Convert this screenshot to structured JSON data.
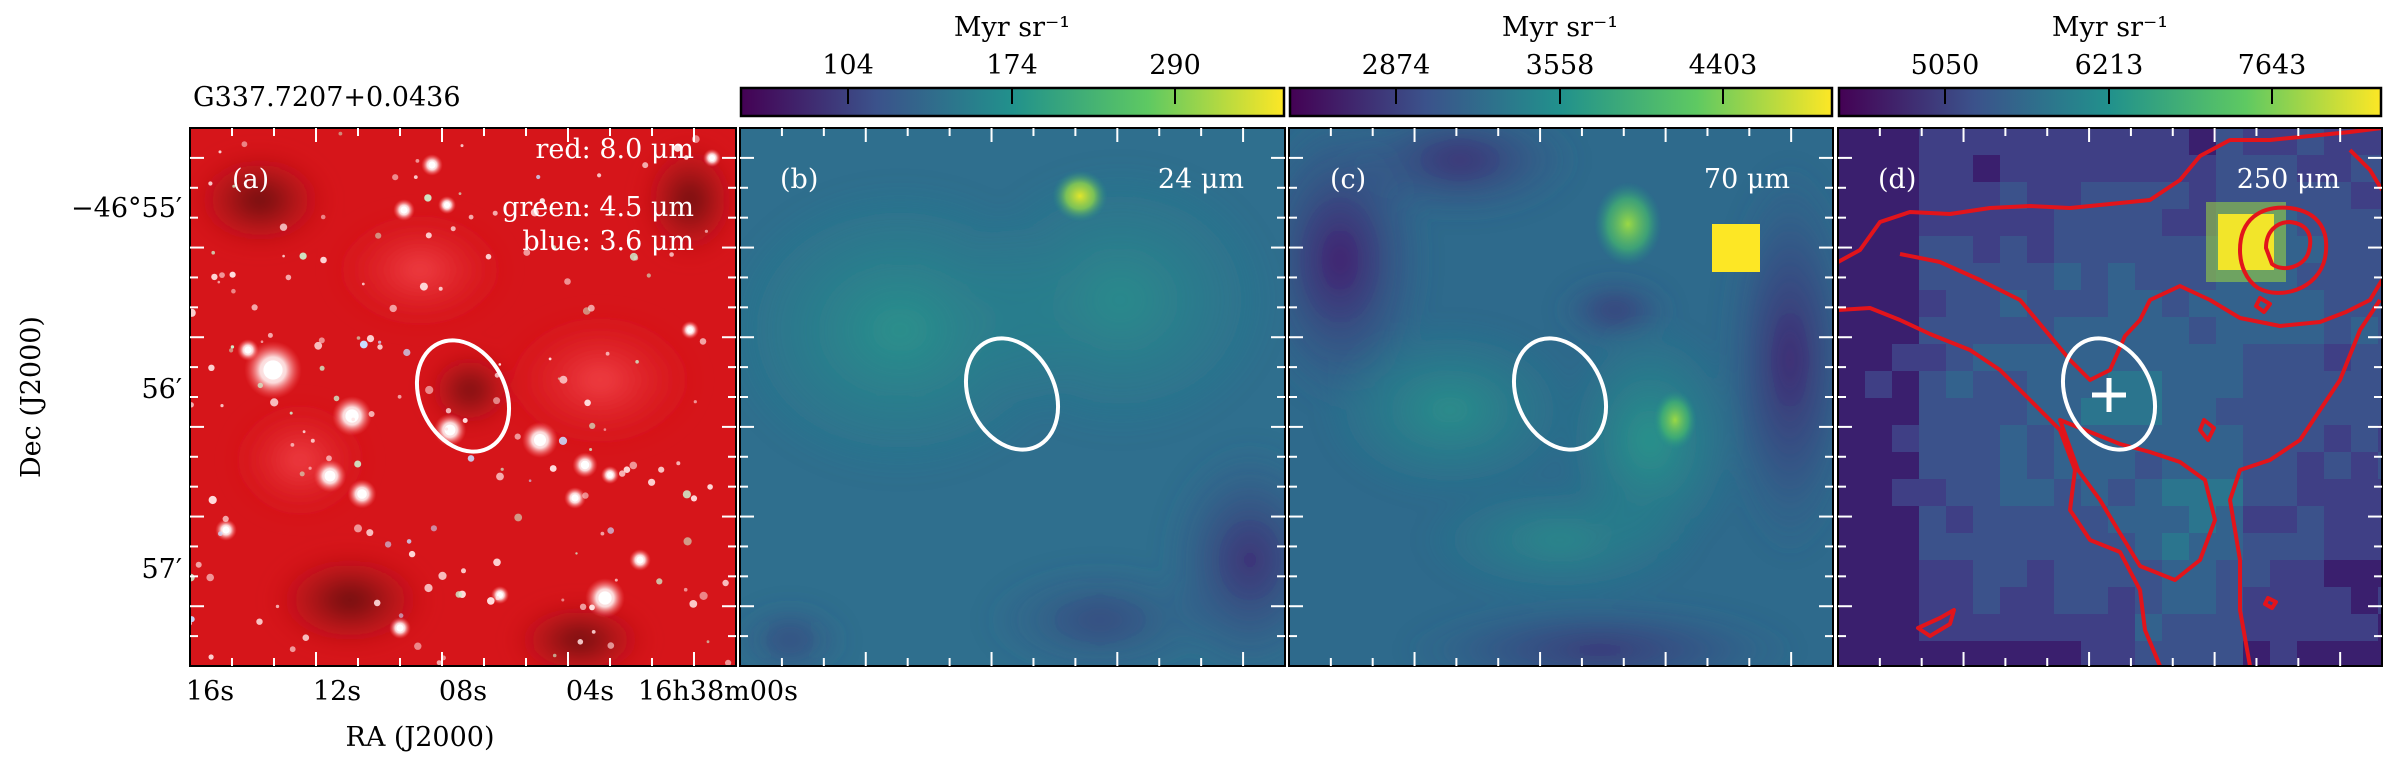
{
  "figure": {
    "source_title": "G337.7207+0.0436",
    "axes": {
      "xlabel": "RA (J2000)",
      "ylabel": "Dec (J2000)",
      "ra_ticks": [
        "16s",
        "12s",
        "08s",
        "04s",
        "16h38m00s"
      ],
      "dec_ticks": [
        "−46°55′",
        "56′",
        "57′"
      ]
    },
    "panels": [
      {
        "id": "a",
        "label": "(a)",
        "legend": [
          "red: 8.0 μm",
          "green: 4.5 μm",
          "blue: 3.6 μm"
        ],
        "colors": {
          "red": "#d6151a",
          "green": "#7fd36b",
          "blue": "#7aa7e6"
        }
      },
      {
        "id": "b",
        "label": "(b)",
        "wavelength": "24 μm",
        "colorbar": {
          "unit": "Myr sr⁻¹",
          "ticks": [
            "104",
            "174",
            "290"
          ]
        }
      },
      {
        "id": "c",
        "label": "(c)",
        "wavelength": "70 μm",
        "colorbar": {
          "unit": "Myr sr⁻¹",
          "ticks": [
            "2874",
            "3558",
            "4403"
          ]
        }
      },
      {
        "id": "d",
        "label": "(d)",
        "wavelength": "250 μm",
        "colorbar": {
          "unit": "Myr sr⁻¹",
          "ticks": [
            "5050",
            "6213",
            "7643"
          ]
        },
        "contour_color": "#e2141b",
        "marker": "cross"
      }
    ],
    "colormap": [
      "#440154",
      "#3b528b",
      "#21918c",
      "#5ec962",
      "#fde725"
    ]
  }
}
